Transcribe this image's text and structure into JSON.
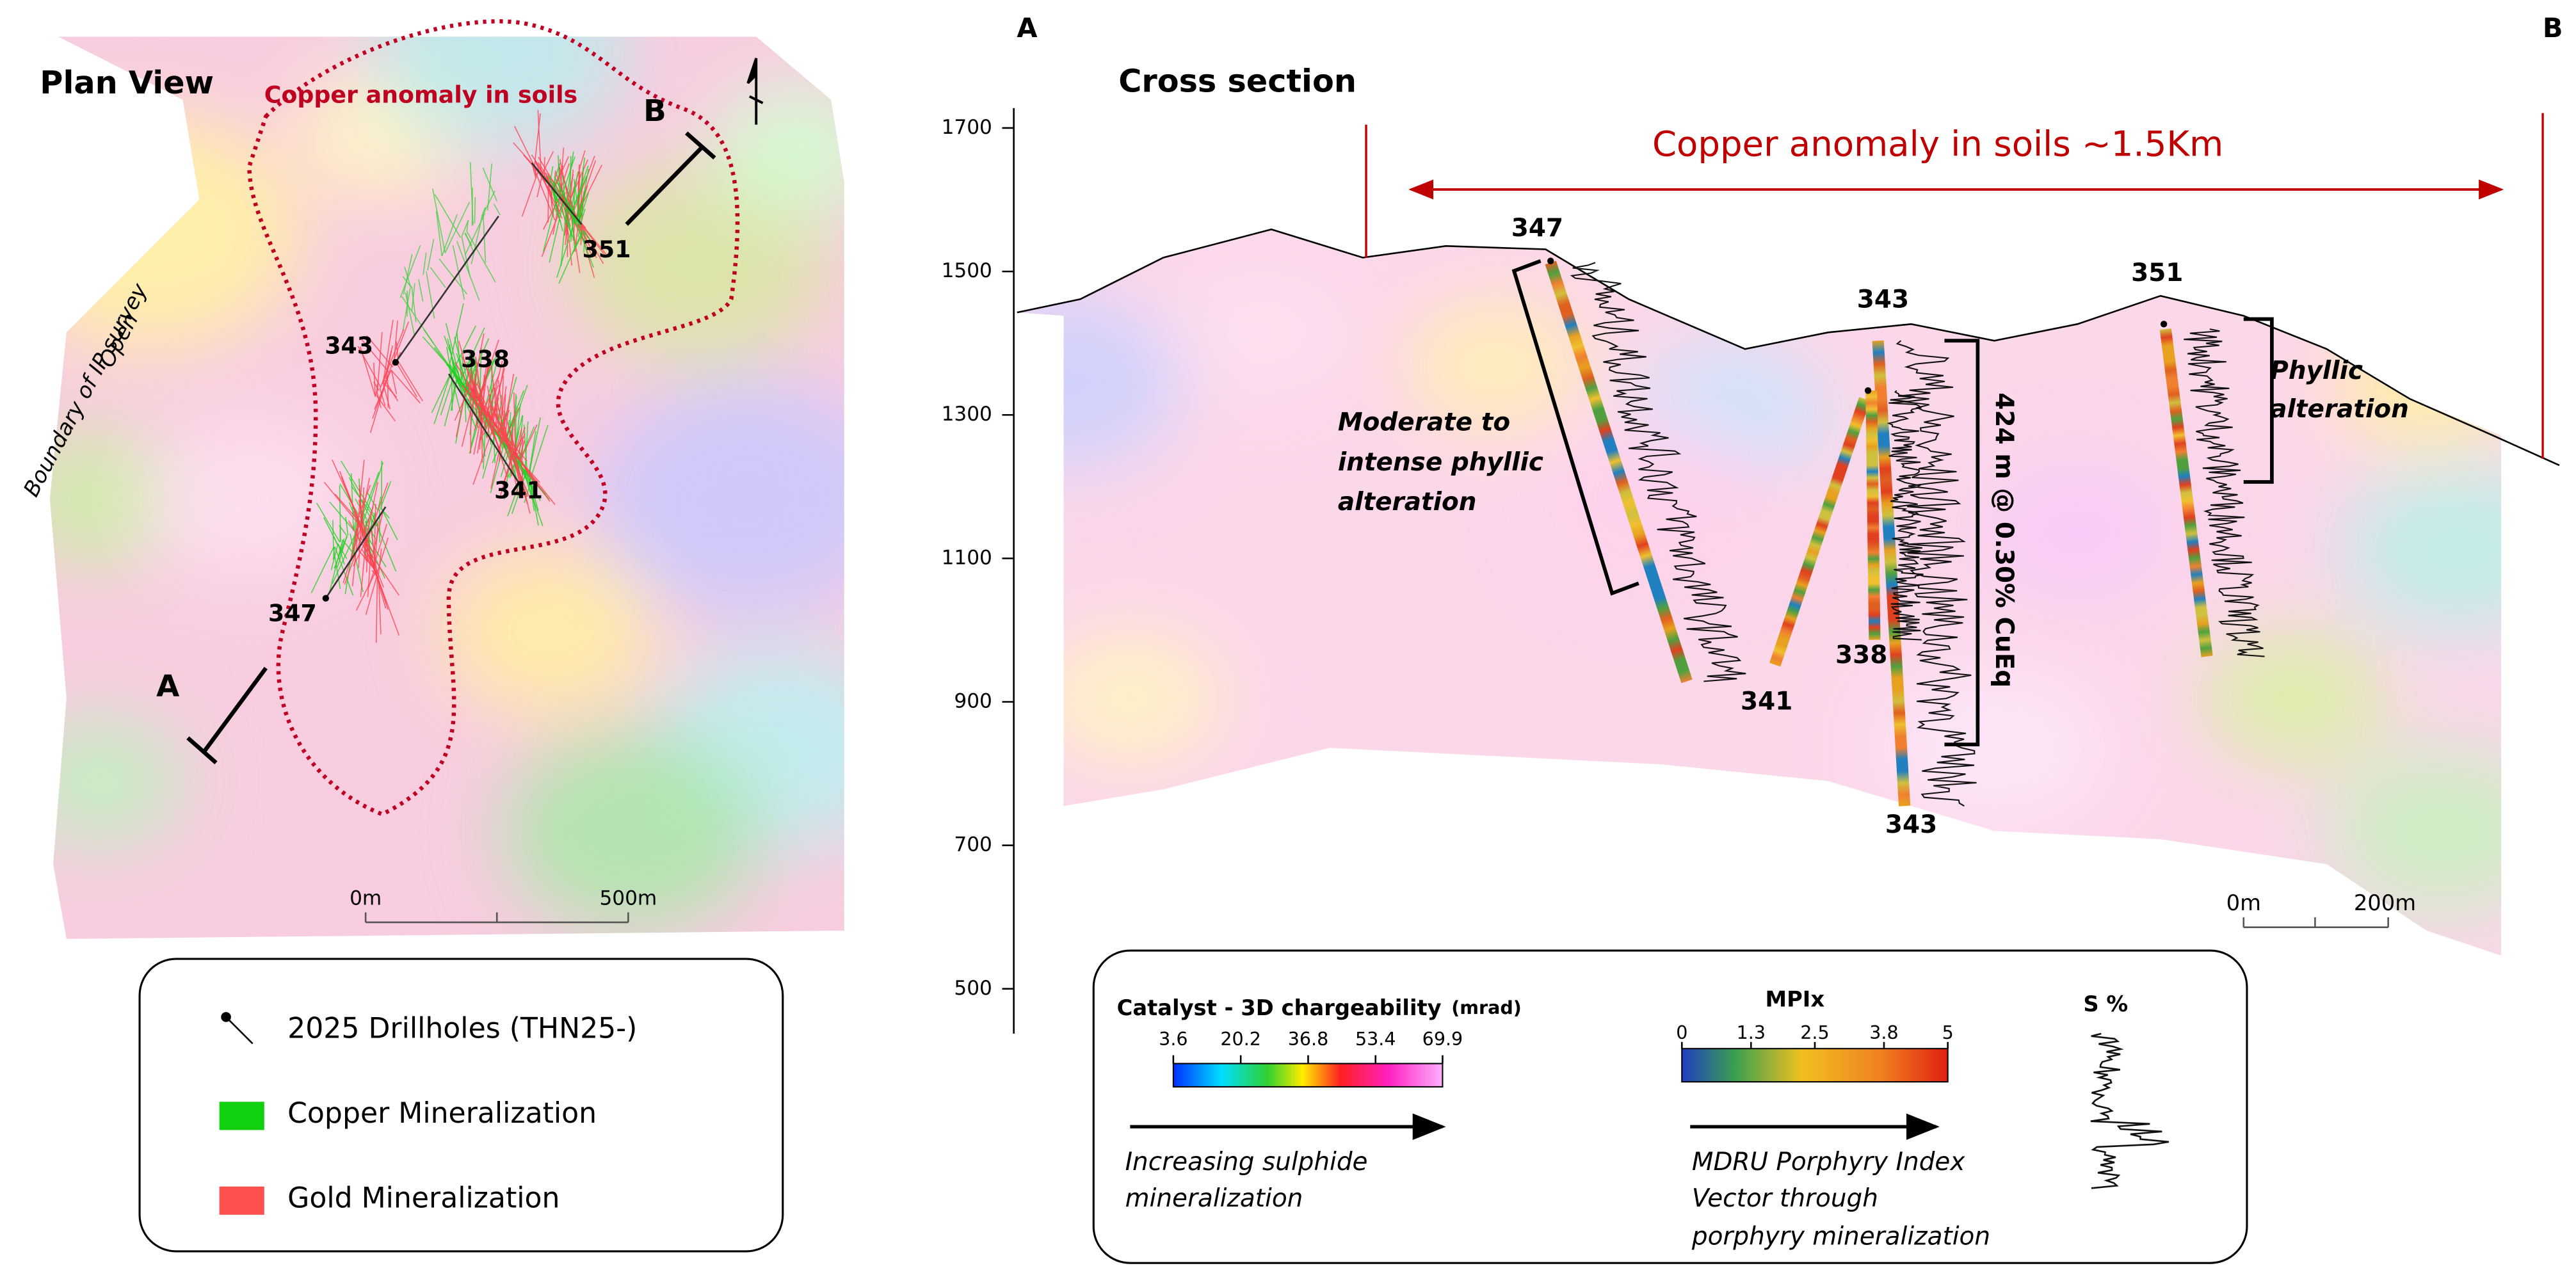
{
  "plan_view": {
    "title": "Plan View",
    "anomaly_label": "Copper anomaly in soils",
    "boundary_label": [
      "Boundary of IP survey",
      "Open"
    ],
    "section_ends": [
      "A",
      "B"
    ],
    "drillholes": [
      "351",
      "343",
      "338",
      "341",
      "347"
    ],
    "scale": [
      "0m",
      "500m"
    ]
  },
  "plan_legend": {
    "items": [
      "2025 Drillholes (THN25-)",
      "Copper Mineralization",
      "Gold Mineralization"
    ]
  },
  "cross_section": {
    "title": "Cross section",
    "section_ends": [
      "A",
      "B"
    ],
    "anomaly_label": "Copper anomaly in soils  ~1.5Km",
    "yticks": [
      500,
      700,
      900,
      1100,
      1300,
      1500,
      1700
    ],
    "drillholes": [
      "347",
      "343",
      "351",
      "341",
      "338",
      "343"
    ],
    "annotations": {
      "phyllic_347": [
        "Moderate to",
        "intense phyllic",
        "alteration"
      ],
      "intercept": "424 m @ 0.30% CuEq",
      "phyllic_351": [
        "Phyllic",
        "alteration"
      ]
    },
    "scale": [
      "0m",
      "200m"
    ]
  },
  "section_legend": {
    "chargeability": {
      "title": "Catalyst - 3D chargeability",
      "unit": "(mrad)",
      "ticks": [
        3.6,
        20.2,
        36.8,
        53.4,
        69.9
      ],
      "caption": [
        "Increasing sulphide",
        "mineralization"
      ]
    },
    "mpix": {
      "title": "MPIx",
      "ticks": [
        0,
        1.3,
        2.5,
        3.8,
        5
      ],
      "caption": [
        "MDRU Porphyry Index",
        "Vector through",
        "porphyry mineralization"
      ]
    },
    "sulphur": {
      "title": "S %"
    }
  }
}
